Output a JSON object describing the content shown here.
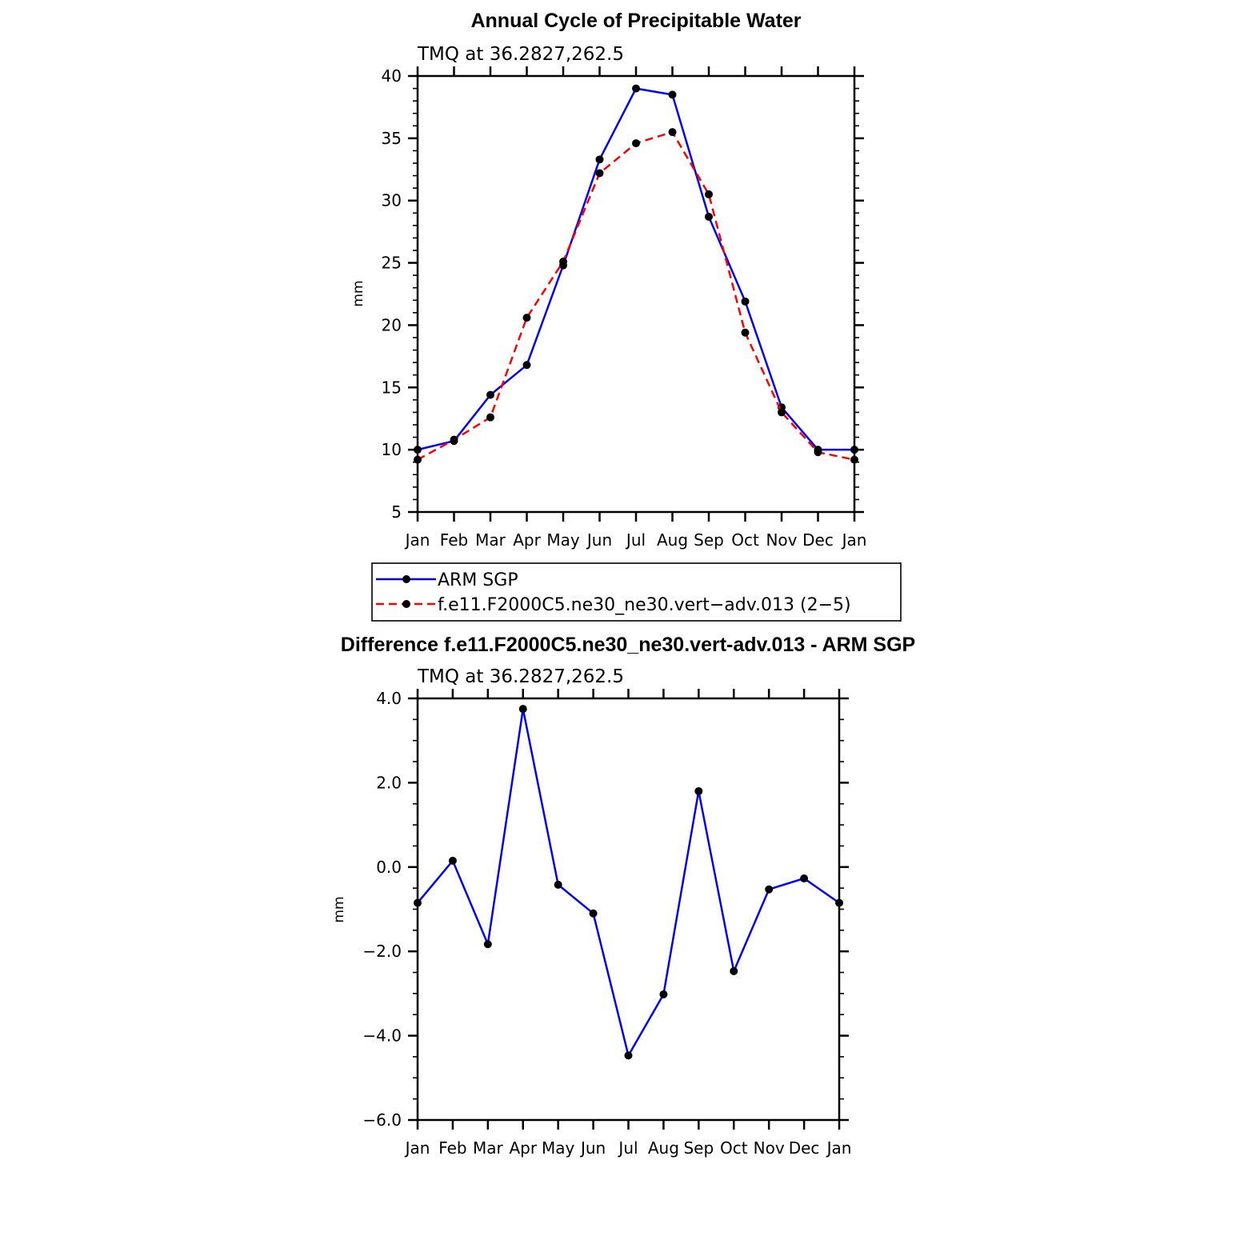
{
  "chart_data": [
    {
      "type": "line",
      "title": "Annual Cycle of Precipitable Water",
      "subtitle": "TMQ at 36.2827,262.5",
      "xlabel": "",
      "ylabel": "mm",
      "categories": [
        "Jan",
        "Feb",
        "Mar",
        "Apr",
        "May",
        "Jun",
        "Jul",
        "Aug",
        "Sep",
        "Oct",
        "Nov",
        "Dec",
        "Jan"
      ],
      "ylim": [
        5,
        40
      ],
      "yticks": [
        5,
        10,
        15,
        20,
        25,
        30,
        35,
        40
      ],
      "ytick_labels": [
        "5",
        "10",
        "15",
        "20",
        "25",
        "30",
        "35",
        "40"
      ],
      "series": [
        {
          "name": "ARM SGP",
          "color": "#0000ff",
          "dashed": false,
          "values": [
            10.0,
            10.7,
            14.4,
            16.8,
            24.8,
            33.3,
            39.0,
            38.5,
            28.7,
            21.9,
            13.4,
            10.0,
            10.0
          ]
        },
        {
          "name": "f.e11.F2000C5.ne30_ne30.vert−adv.013 (2−5)",
          "color": "#ff0000",
          "dashed": true,
          "values": [
            9.2,
            10.8,
            12.6,
            20.6,
            25.1,
            32.2,
            34.6,
            35.5,
            30.5,
            19.4,
            13.0,
            9.8,
            9.2
          ]
        }
      ]
    },
    {
      "type": "line",
      "title": "Difference f.e11.F2000C5.ne30_ne30.vert-adv.013 - ARM SGP",
      "subtitle": "TMQ at 36.2827,262.5",
      "xlabel": "",
      "ylabel": "mm",
      "categories": [
        "Jan",
        "Feb",
        "Mar",
        "Apr",
        "May",
        "Jun",
        "Jul",
        "Aug",
        "Sep",
        "Oct",
        "Nov",
        "Dec",
        "Jan"
      ],
      "ylim": [
        -6,
        4
      ],
      "yticks": [
        -6,
        -4,
        -2,
        0,
        2,
        4
      ],
      "ytick_labels": [
        "−6.0",
        "−4.0",
        "−2.0",
        "0.0",
        "2.0",
        "4.0"
      ],
      "series": [
        {
          "name": "difference",
          "color": "#0000ff",
          "dashed": false,
          "values": [
            -0.85,
            0.15,
            -1.83,
            3.75,
            -0.42,
            -1.1,
            -4.47,
            -3.02,
            1.8,
            -2.47,
            -0.53,
            -0.27,
            -0.85
          ]
        }
      ]
    }
  ]
}
